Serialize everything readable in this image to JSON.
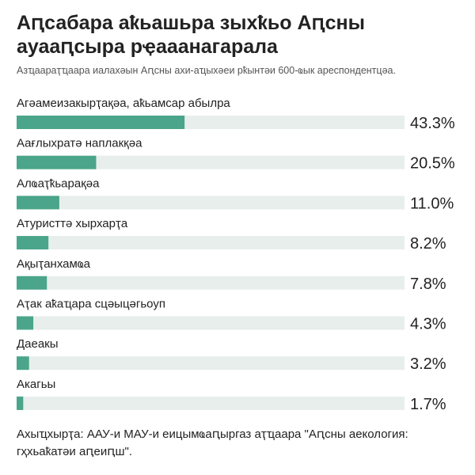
{
  "title": "Аԥсабара аҟьашьра зыхҟьо Аԥсны ауааԥсыра рҿааанагарала",
  "subtitle": "Азҵаараҭҵаара иалахәын Аԥсны ахи-аҵыхәеи рҟынтәи 600-ҩык ареспондентцәа.",
  "source": "Ахыҵхырҭа: ААУ-и МАУ-и еицымҩаԥыргаз аҭҵаара \"Аԥсны аекология: гҳхьаҟатәи аԥеиԥш\".",
  "colors": {
    "bar": "#4aa58a",
    "track": "#e8eeeb",
    "text": "#222222"
  },
  "chart_data": {
    "type": "bar",
    "orientation": "horizontal",
    "unit": "%",
    "xlim": [
      0,
      100
    ],
    "categories": [
      "Агәамеизакырҭақәа, аҟьамсар абылра",
      "Аағлыхратә наплакқәа",
      "Алҩаҭҟьарақәа",
      "Атуристтә хырхарҭа",
      "Ақыҭанхамҩа",
      "Аҭак аҟаҵара сцәыцәгьоуп",
      "Даеакы",
      "Акагьы"
    ],
    "values": [
      43.3,
      20.5,
      11.0,
      8.2,
      7.8,
      4.3,
      3.2,
      1.7
    ],
    "value_labels": [
      "43.3%",
      "20.5%",
      "11.0%",
      "8.2%",
      "7.8%",
      "4.3%",
      "3.2%",
      "1.7%"
    ]
  }
}
